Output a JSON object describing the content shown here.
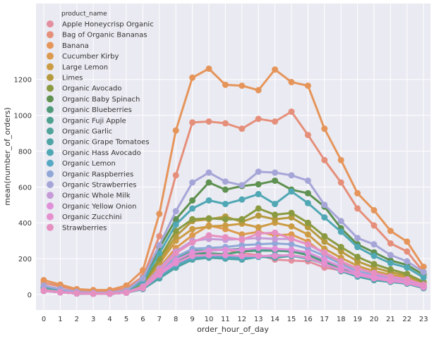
{
  "chart_data": {
    "type": "line",
    "title": "",
    "xlabel": "order_hour_of_day",
    "ylabel": "mean(number_of_orders)",
    "ylim": [
      -75,
      1350
    ],
    "yticks": [
      0,
      200,
      400,
      600,
      800,
      1000,
      1200
    ],
    "grid": true,
    "legend": {
      "title": "product_name",
      "placement": "top-left"
    },
    "x": [
      0,
      1,
      2,
      3,
      4,
      5,
      6,
      7,
      8,
      9,
      10,
      11,
      12,
      13,
      14,
      15,
      16,
      17,
      18,
      19,
      20,
      21,
      22,
      23
    ],
    "series": [
      {
        "name": "Apple Honeycrisp Organic",
        "color": "#e48fa0",
        "values": [
          25,
          12,
          5,
          5,
          5,
          10,
          45,
          115,
          170,
          220,
          250,
          250,
          230,
          220,
          195,
          190,
          185,
          150,
          135,
          115,
          95,
          80,
          70,
          45
        ]
      },
      {
        "name": "Bag of Organic Bananas",
        "color": "#e58f7a",
        "values": [
          65,
          45,
          25,
          20,
          20,
          35,
          100,
          325,
          665,
          960,
          965,
          955,
          925,
          980,
          965,
          1020,
          890,
          750,
          625,
          480,
          385,
          285,
          240,
          125
        ]
      },
      {
        "name": "Banana",
        "color": "#e5955a",
        "values": [
          80,
          55,
          30,
          25,
          25,
          50,
          135,
          450,
          915,
          1210,
          1260,
          1170,
          1165,
          1140,
          1255,
          1185,
          1165,
          925,
          750,
          565,
          470,
          355,
          295,
          155
        ]
      },
      {
        "name": "Cucumber Kirby",
        "color": "#dc9a4e",
        "values": [
          25,
          15,
          8,
          5,
          5,
          12,
          45,
          150,
          260,
          330,
          385,
          365,
          335,
          350,
          330,
          335,
          295,
          225,
          180,
          145,
          120,
          105,
          90,
          55
        ]
      },
      {
        "name": "Large Lemon",
        "color": "#cc9c44",
        "values": [
          25,
          15,
          8,
          5,
          5,
          12,
          50,
          170,
          300,
          365,
          380,
          385,
          395,
          375,
          400,
          380,
          335,
          255,
          205,
          160,
          130,
          110,
          95,
          55
        ]
      },
      {
        "name": "Limes",
        "color": "#b79a3e",
        "values": [
          30,
          18,
          9,
          5,
          5,
          14,
          55,
          185,
          325,
          410,
          420,
          435,
          405,
          440,
          420,
          430,
          375,
          295,
          240,
          185,
          150,
          125,
          105,
          65
        ]
      },
      {
        "name": "Organic Avocado",
        "color": "#8a9a40",
        "values": [
          35,
          20,
          10,
          6,
          6,
          15,
          60,
          200,
          355,
          420,
          425,
          420,
          420,
          480,
          445,
          455,
          400,
          325,
          265,
          210,
          170,
          140,
          115,
          70
        ]
      },
      {
        "name": "Organic Baby Spinach",
        "color": "#5f9150",
        "values": [
          45,
          28,
          14,
          8,
          8,
          20,
          80,
          260,
          420,
          525,
          625,
          585,
          605,
          615,
          635,
          585,
          565,
          490,
          370,
          280,
          235,
          190,
          165,
          110
        ]
      },
      {
        "name": "Organic Blueberries",
        "color": "#4f9a78",
        "values": [
          20,
          12,
          6,
          4,
          4,
          10,
          35,
          115,
          185,
          230,
          230,
          225,
          240,
          245,
          245,
          240,
          220,
          185,
          150,
          115,
          95,
          80,
          65,
          40
        ]
      },
      {
        "name": "Organic Fuji Apple",
        "color": "#4ea08f",
        "values": [
          20,
          12,
          6,
          4,
          4,
          10,
          35,
          120,
          205,
          245,
          245,
          250,
          255,
          245,
          250,
          245,
          230,
          190,
          150,
          120,
          100,
          85,
          70,
          45
        ]
      },
      {
        "name": "Organic Garlic",
        "color": "#4fa39a",
        "values": [
          20,
          12,
          6,
          4,
          4,
          10,
          35,
          105,
          160,
          205,
          215,
          205,
          210,
          210,
          215,
          220,
          205,
          175,
          135,
          110,
          90,
          75,
          65,
          40
        ]
      },
      {
        "name": "Organic Grape Tomatoes",
        "color": "#4fa4a6",
        "values": [
          20,
          12,
          6,
          4,
          4,
          10,
          30,
          90,
          150,
          195,
          205,
          200,
          195,
          210,
          205,
          215,
          200,
          170,
          130,
          100,
          80,
          70,
          60,
          35
        ]
      },
      {
        "name": "Organic Hass Avocado",
        "color": "#50a8b4",
        "values": [
          40,
          25,
          12,
          7,
          7,
          18,
          70,
          230,
          390,
          480,
          525,
          505,
          530,
          560,
          505,
          575,
          510,
          430,
          350,
          265,
          215,
          175,
          150,
          95
        ]
      },
      {
        "name": "Organic Lemon",
        "color": "#56a9c4",
        "values": [
          20,
          12,
          6,
          4,
          4,
          10,
          35,
          105,
          165,
          205,
          215,
          210,
          205,
          210,
          220,
          215,
          205,
          170,
          135,
          105,
          90,
          75,
          65,
          40
        ]
      },
      {
        "name": "Organic Raspberries",
        "color": "#90a8d8",
        "values": [
          22,
          13,
          7,
          4,
          4,
          11,
          40,
          125,
          210,
          255,
          260,
          265,
          275,
          280,
          285,
          280,
          255,
          215,
          170,
          130,
          110,
          90,
          75,
          50
        ]
      },
      {
        "name": "Organic Strawberries",
        "color": "#a6a5d8",
        "values": [
          50,
          30,
          15,
          9,
          9,
          22,
          90,
          275,
          465,
          625,
          680,
          630,
          610,
          685,
          680,
          665,
          635,
          500,
          410,
          315,
          280,
          220,
          185,
          125
        ]
      },
      {
        "name": "Organic Whole Milk",
        "color": "#c69ad6",
        "values": [
          25,
          15,
          8,
          5,
          5,
          12,
          45,
          145,
          240,
          300,
          310,
          305,
          310,
          315,
          310,
          310,
          280,
          230,
          185,
          145,
          120,
          100,
          85,
          55
        ]
      },
      {
        "name": "Organic Yellow Onion",
        "color": "#e090d8",
        "values": [
          20,
          12,
          6,
          4,
          4,
          10,
          35,
          120,
          190,
          235,
          245,
          250,
          250,
          260,
          255,
          250,
          235,
          195,
          155,
          120,
          100,
          85,
          70,
          45
        ]
      },
      {
        "name": "Organic Zucchini",
        "color": "#e68fcf",
        "values": [
          20,
          12,
          6,
          4,
          4,
          10,
          35,
          110,
          175,
          215,
          220,
          220,
          215,
          215,
          215,
          220,
          205,
          170,
          135,
          110,
          90,
          75,
          65,
          40
        ]
      },
      {
        "name": "Strawberries",
        "color": "#e690c2",
        "values": [
          22,
          13,
          7,
          4,
          4,
          11,
          40,
          130,
          230,
          290,
          330,
          320,
          305,
          340,
          345,
          310,
          280,
          235,
          185,
          145,
          120,
          100,
          85,
          55
        ]
      }
    ]
  }
}
